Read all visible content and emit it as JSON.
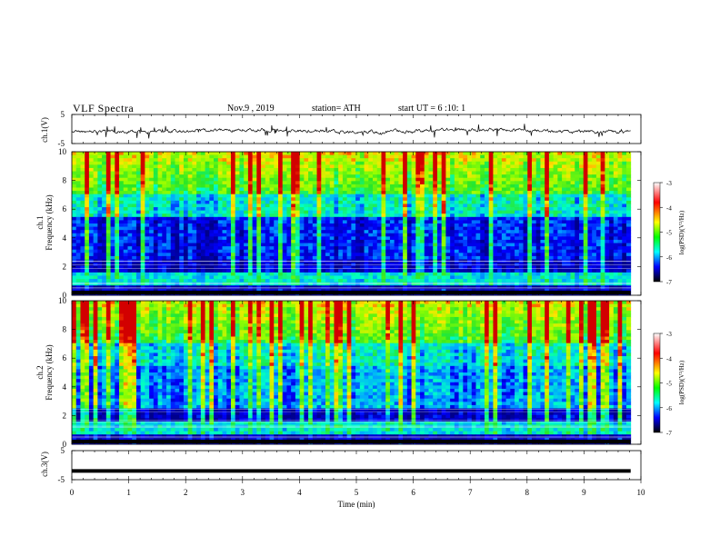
{
  "header": {
    "title": "VLF Spectra",
    "date": "Nov.9 , 2019",
    "station": "station= ATH",
    "start": "start UT = 6 :10: 1"
  },
  "chart_data": [
    {
      "type": "line",
      "title": "",
      "ylabel": "ch.1(V)",
      "xlim": [
        0,
        10
      ],
      "ylim": [
        -5,
        5
      ],
      "yticks": [
        "5",
        "-5"
      ],
      "series": [
        {
          "name": "",
          "description_values_approx": [
            0.0,
            -0.5,
            0.5,
            -0.3,
            0.2,
            -0.4,
            0.1,
            0.0,
            -0.2,
            0.3
          ]
        }
      ]
    },
    {
      "type": "heatmap",
      "ylabel_line1": "ch.1",
      "ylabel_line2": "Frequency (kHz)",
      "xlim": [
        0,
        9.8
      ],
      "ylim": [
        0,
        10
      ],
      "yticks": [
        "0",
        "2",
        "4",
        "6",
        "8",
        "10"
      ]
    },
    {
      "type": "heatmap",
      "ylabel_line1": "ch.2",
      "ylabel_line2": "Frequency (kHz)",
      "xlim": [
        0,
        9.8
      ],
      "ylim": [
        0,
        10
      ],
      "yticks": [
        "0",
        "2",
        "4",
        "6",
        "8",
        "10"
      ]
    },
    {
      "type": "line",
      "ylabel": "ch.3(V)",
      "xlim": [
        0,
        10
      ],
      "ylim": [
        -5,
        5
      ],
      "yticks": [
        "5",
        "-5"
      ],
      "series": [
        {
          "name": "",
          "values_approx": [
            -2.0,
            -2.0
          ]
        }
      ]
    }
  ],
  "xaxis": {
    "label": "Time (min)",
    "ticks": [
      "0",
      "1",
      "2",
      "3",
      "4",
      "5",
      "6",
      "7",
      "8",
      "9",
      "10"
    ]
  },
  "colorbar": {
    "label": "log(PSD)(V²/Hz)",
    "ticks": [
      "-3",
      "-4",
      "-5",
      "-6",
      "-7"
    ],
    "colors": [
      "#ffffff",
      "#ff0000",
      "#ffff00",
      "#00ff00",
      "#00ffff",
      "#0000ff",
      "#000000"
    ]
  }
}
